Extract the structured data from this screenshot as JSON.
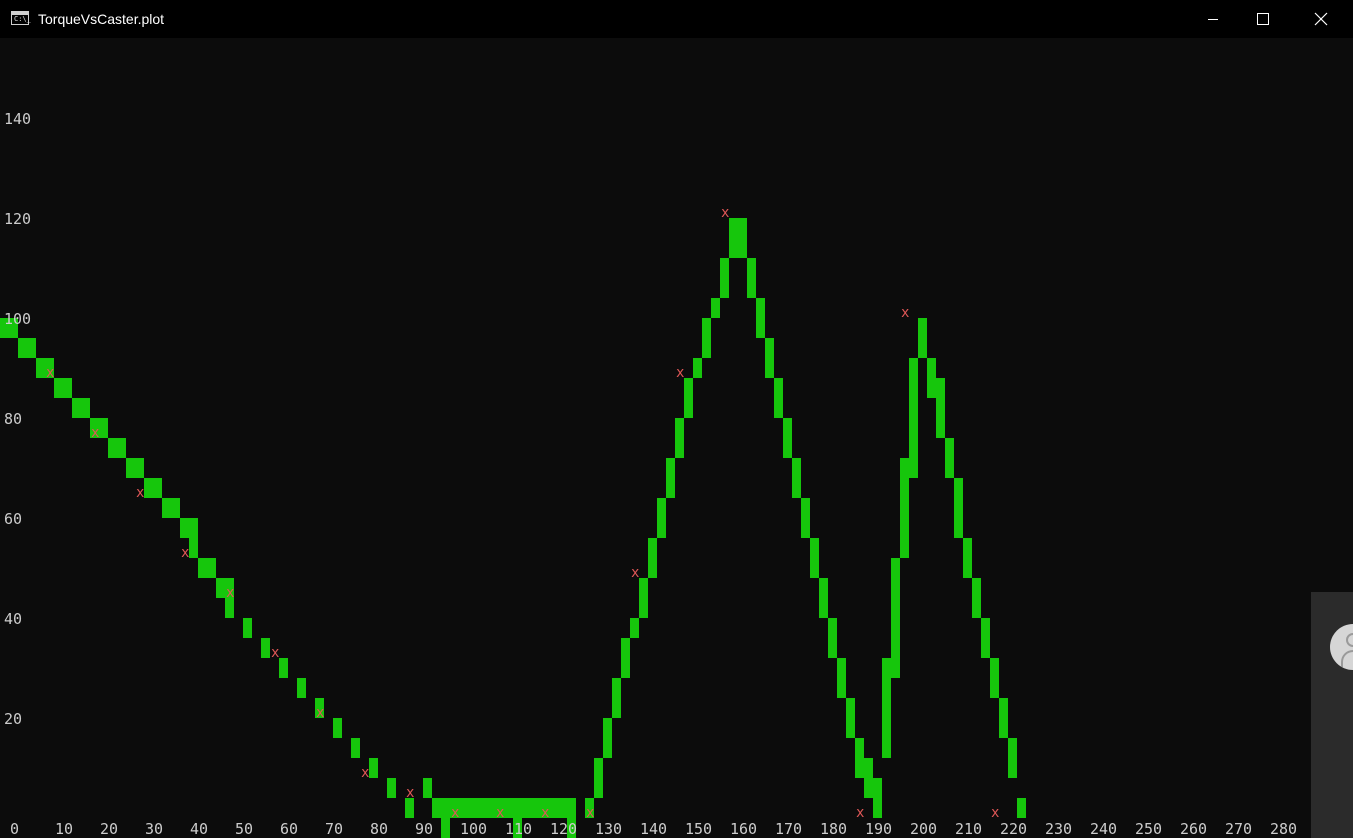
{
  "window": {
    "title": "TorqueVsCaster.plot",
    "icon": "console-app-icon",
    "icon_text": "C:\\_"
  },
  "colors": {
    "background": "#0c0c0c",
    "titlebar": "#000000",
    "series": "#16c60c",
    "marker": "#e05757",
    "axis_text": "#cccccc"
  },
  "chart_data": {
    "type": "bar",
    "title": "",
    "xlabel": "",
    "ylabel": "",
    "xlim": [
      0,
      290
    ],
    "ylim": [
      0,
      160
    ],
    "x_ticks": [
      "0",
      "10",
      "20",
      "30",
      "40",
      "50",
      "60",
      "70",
      "80",
      "90",
      "100",
      "110",
      "120",
      "130",
      "140",
      "150",
      "160",
      "170",
      "180",
      "190",
      "200",
      "210",
      "220",
      "230",
      "240",
      "250",
      "260",
      "270",
      "280"
    ],
    "y_ticks": [
      "20",
      "40",
      "60",
      "80",
      "100",
      "120",
      "140"
    ],
    "grid": false,
    "marker_symbol": "x",
    "series": [
      {
        "values": [
          [
            0,
            96,
            100
          ],
          [
            4,
            92,
            96
          ],
          [
            8,
            88,
            92
          ],
          [
            12,
            84,
            88
          ],
          [
            16,
            80,
            84
          ],
          [
            20,
            76,
            80
          ],
          [
            24,
            72,
            76
          ],
          [
            28,
            68,
            72
          ],
          [
            32,
            64,
            68
          ],
          [
            36,
            60,
            64
          ],
          [
            40,
            56,
            60
          ],
          [
            42,
            52,
            56
          ],
          [
            44,
            48,
            52
          ],
          [
            48,
            44,
            48
          ],
          [
            50,
            40,
            44
          ],
          [
            54,
            36,
            40
          ],
          [
            58,
            32,
            36
          ],
          [
            62,
            28,
            32
          ],
          [
            66,
            24,
            28
          ],
          [
            70,
            20,
            24
          ],
          [
            74,
            16,
            20
          ],
          [
            78,
            12,
            16
          ],
          [
            82,
            8,
            12
          ],
          [
            86,
            4,
            8
          ],
          [
            90,
            0,
            4
          ],
          [
            94,
            4,
            8
          ],
          [
            96,
            0,
            4
          ],
          [
            98,
            -4,
            0
          ],
          [
            100,
            0,
            4
          ],
          [
            102,
            0,
            4
          ],
          [
            104,
            0,
            4
          ],
          [
            106,
            0,
            4
          ],
          [
            108,
            0,
            4
          ],
          [
            110,
            0,
            4
          ],
          [
            112,
            0,
            4
          ],
          [
            114,
            -4,
            0
          ],
          [
            116,
            0,
            4
          ],
          [
            118,
            0,
            4
          ],
          [
            120,
            0,
            4
          ],
          [
            122,
            0,
            4
          ],
          [
            124,
            0,
            4
          ],
          [
            126,
            -4,
            0
          ],
          [
            130,
            0,
            4
          ],
          [
            132,
            4,
            12
          ],
          [
            134,
            12,
            20
          ],
          [
            136,
            20,
            28
          ],
          [
            138,
            28,
            36
          ],
          [
            140,
            36,
            40
          ],
          [
            142,
            40,
            48
          ],
          [
            144,
            48,
            56
          ],
          [
            146,
            56,
            64
          ],
          [
            148,
            64,
            72
          ],
          [
            150,
            72,
            80
          ],
          [
            152,
            80,
            88
          ],
          [
            154,
            88,
            92
          ],
          [
            156,
            92,
            100
          ],
          [
            158,
            100,
            104
          ],
          [
            160,
            104,
            112
          ],
          [
            162,
            112,
            120
          ],
          [
            164,
            112,
            120
          ],
          [
            166,
            104,
            112
          ],
          [
            168,
            96,
            104
          ],
          [
            170,
            88,
            96
          ],
          [
            172,
            80,
            88
          ],
          [
            174,
            72,
            80
          ],
          [
            176,
            64,
            72
          ],
          [
            178,
            56,
            64
          ],
          [
            180,
            48,
            56
          ],
          [
            182,
            40,
            48
          ],
          [
            184,
            32,
            40
          ],
          [
            186,
            24,
            32
          ],
          [
            188,
            16,
            24
          ],
          [
            190,
            8,
            16
          ],
          [
            192,
            4,
            12
          ],
          [
            194,
            0,
            8
          ],
          [
            196,
            12,
            32
          ],
          [
            198,
            28,
            52
          ],
          [
            200,
            52,
            72
          ],
          [
            202,
            68,
            92
          ],
          [
            204,
            92,
            100
          ],
          [
            206,
            84,
            92
          ],
          [
            208,
            76,
            88
          ],
          [
            210,
            68,
            76
          ],
          [
            212,
            56,
            68
          ],
          [
            214,
            48,
            56
          ],
          [
            216,
            40,
            48
          ],
          [
            218,
            32,
            40
          ],
          [
            220,
            24,
            32
          ],
          [
            222,
            16,
            24
          ],
          [
            224,
            8,
            16
          ],
          [
            226,
            0,
            4
          ]
        ]
      }
    ],
    "markers": [
      [
        10,
        89
      ],
      [
        20,
        77
      ],
      [
        30,
        65
      ],
      [
        40,
        53
      ],
      [
        50,
        45
      ],
      [
        60,
        33
      ],
      [
        70,
        21
      ],
      [
        80,
        9
      ],
      [
        90,
        5
      ],
      [
        100,
        1
      ],
      [
        110,
        1
      ],
      [
        120,
        1
      ],
      [
        130,
        1
      ],
      [
        140,
        49
      ],
      [
        150,
        89
      ],
      [
        160,
        121
      ],
      [
        190,
        1
      ],
      [
        200,
        101
      ],
      [
        220,
        1
      ]
    ]
  }
}
